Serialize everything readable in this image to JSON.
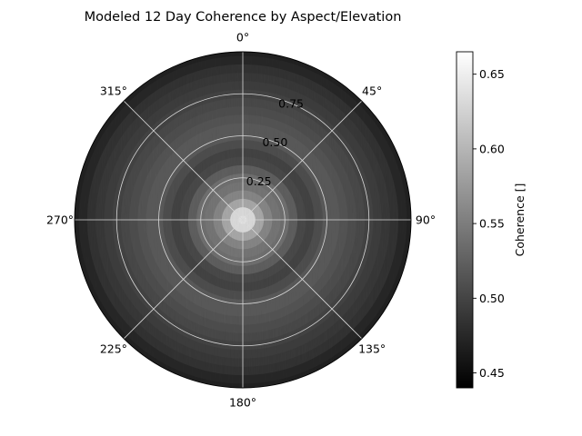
{
  "chart_data": {
    "type": "heatmap",
    "projection": "polar",
    "title": "Modeled 12 Day Coherence by Aspect/Elevation",
    "theta_direction": "clockwise",
    "theta_zero": "top",
    "theta_ticks": [
      0,
      45,
      90,
      135,
      180,
      225,
      270,
      315
    ],
    "theta_tick_labels": [
      "0°",
      "45°",
      "90°",
      "135°",
      "180°",
      "225°",
      "270°",
      "315°"
    ],
    "r_ticks": [
      0.25,
      0.5,
      0.75
    ],
    "r_tick_labels": [
      "0.25",
      "0.50",
      "0.75"
    ],
    "r_range": [
      0,
      1.0
    ],
    "grid": true,
    "colormap": "gray",
    "colorbar": {
      "label": "Coherence []",
      "range": [
        0.44,
        0.665
      ],
      "ticks": [
        0.45,
        0.5,
        0.55,
        0.6,
        0.65
      ],
      "tick_labels": [
        "0.45",
        "0.50",
        "0.55",
        "0.60",
        "0.65"
      ],
      "placement": "right"
    },
    "radial_profile": {
      "r": [
        0.0,
        0.05,
        0.1,
        0.15,
        0.2,
        0.25,
        0.3,
        0.35,
        0.4,
        0.45,
        0.5,
        0.55,
        0.6,
        0.65,
        0.7,
        0.75,
        0.8,
        0.85,
        0.9,
        0.95,
        1.0
      ],
      "coherence": [
        0.645,
        0.635,
        0.59,
        0.56,
        0.545,
        0.54,
        0.525,
        0.505,
        0.5,
        0.51,
        0.52,
        0.52,
        0.515,
        0.51,
        0.505,
        0.5,
        0.495,
        0.49,
        0.485,
        0.475,
        0.47
      ]
    }
  }
}
